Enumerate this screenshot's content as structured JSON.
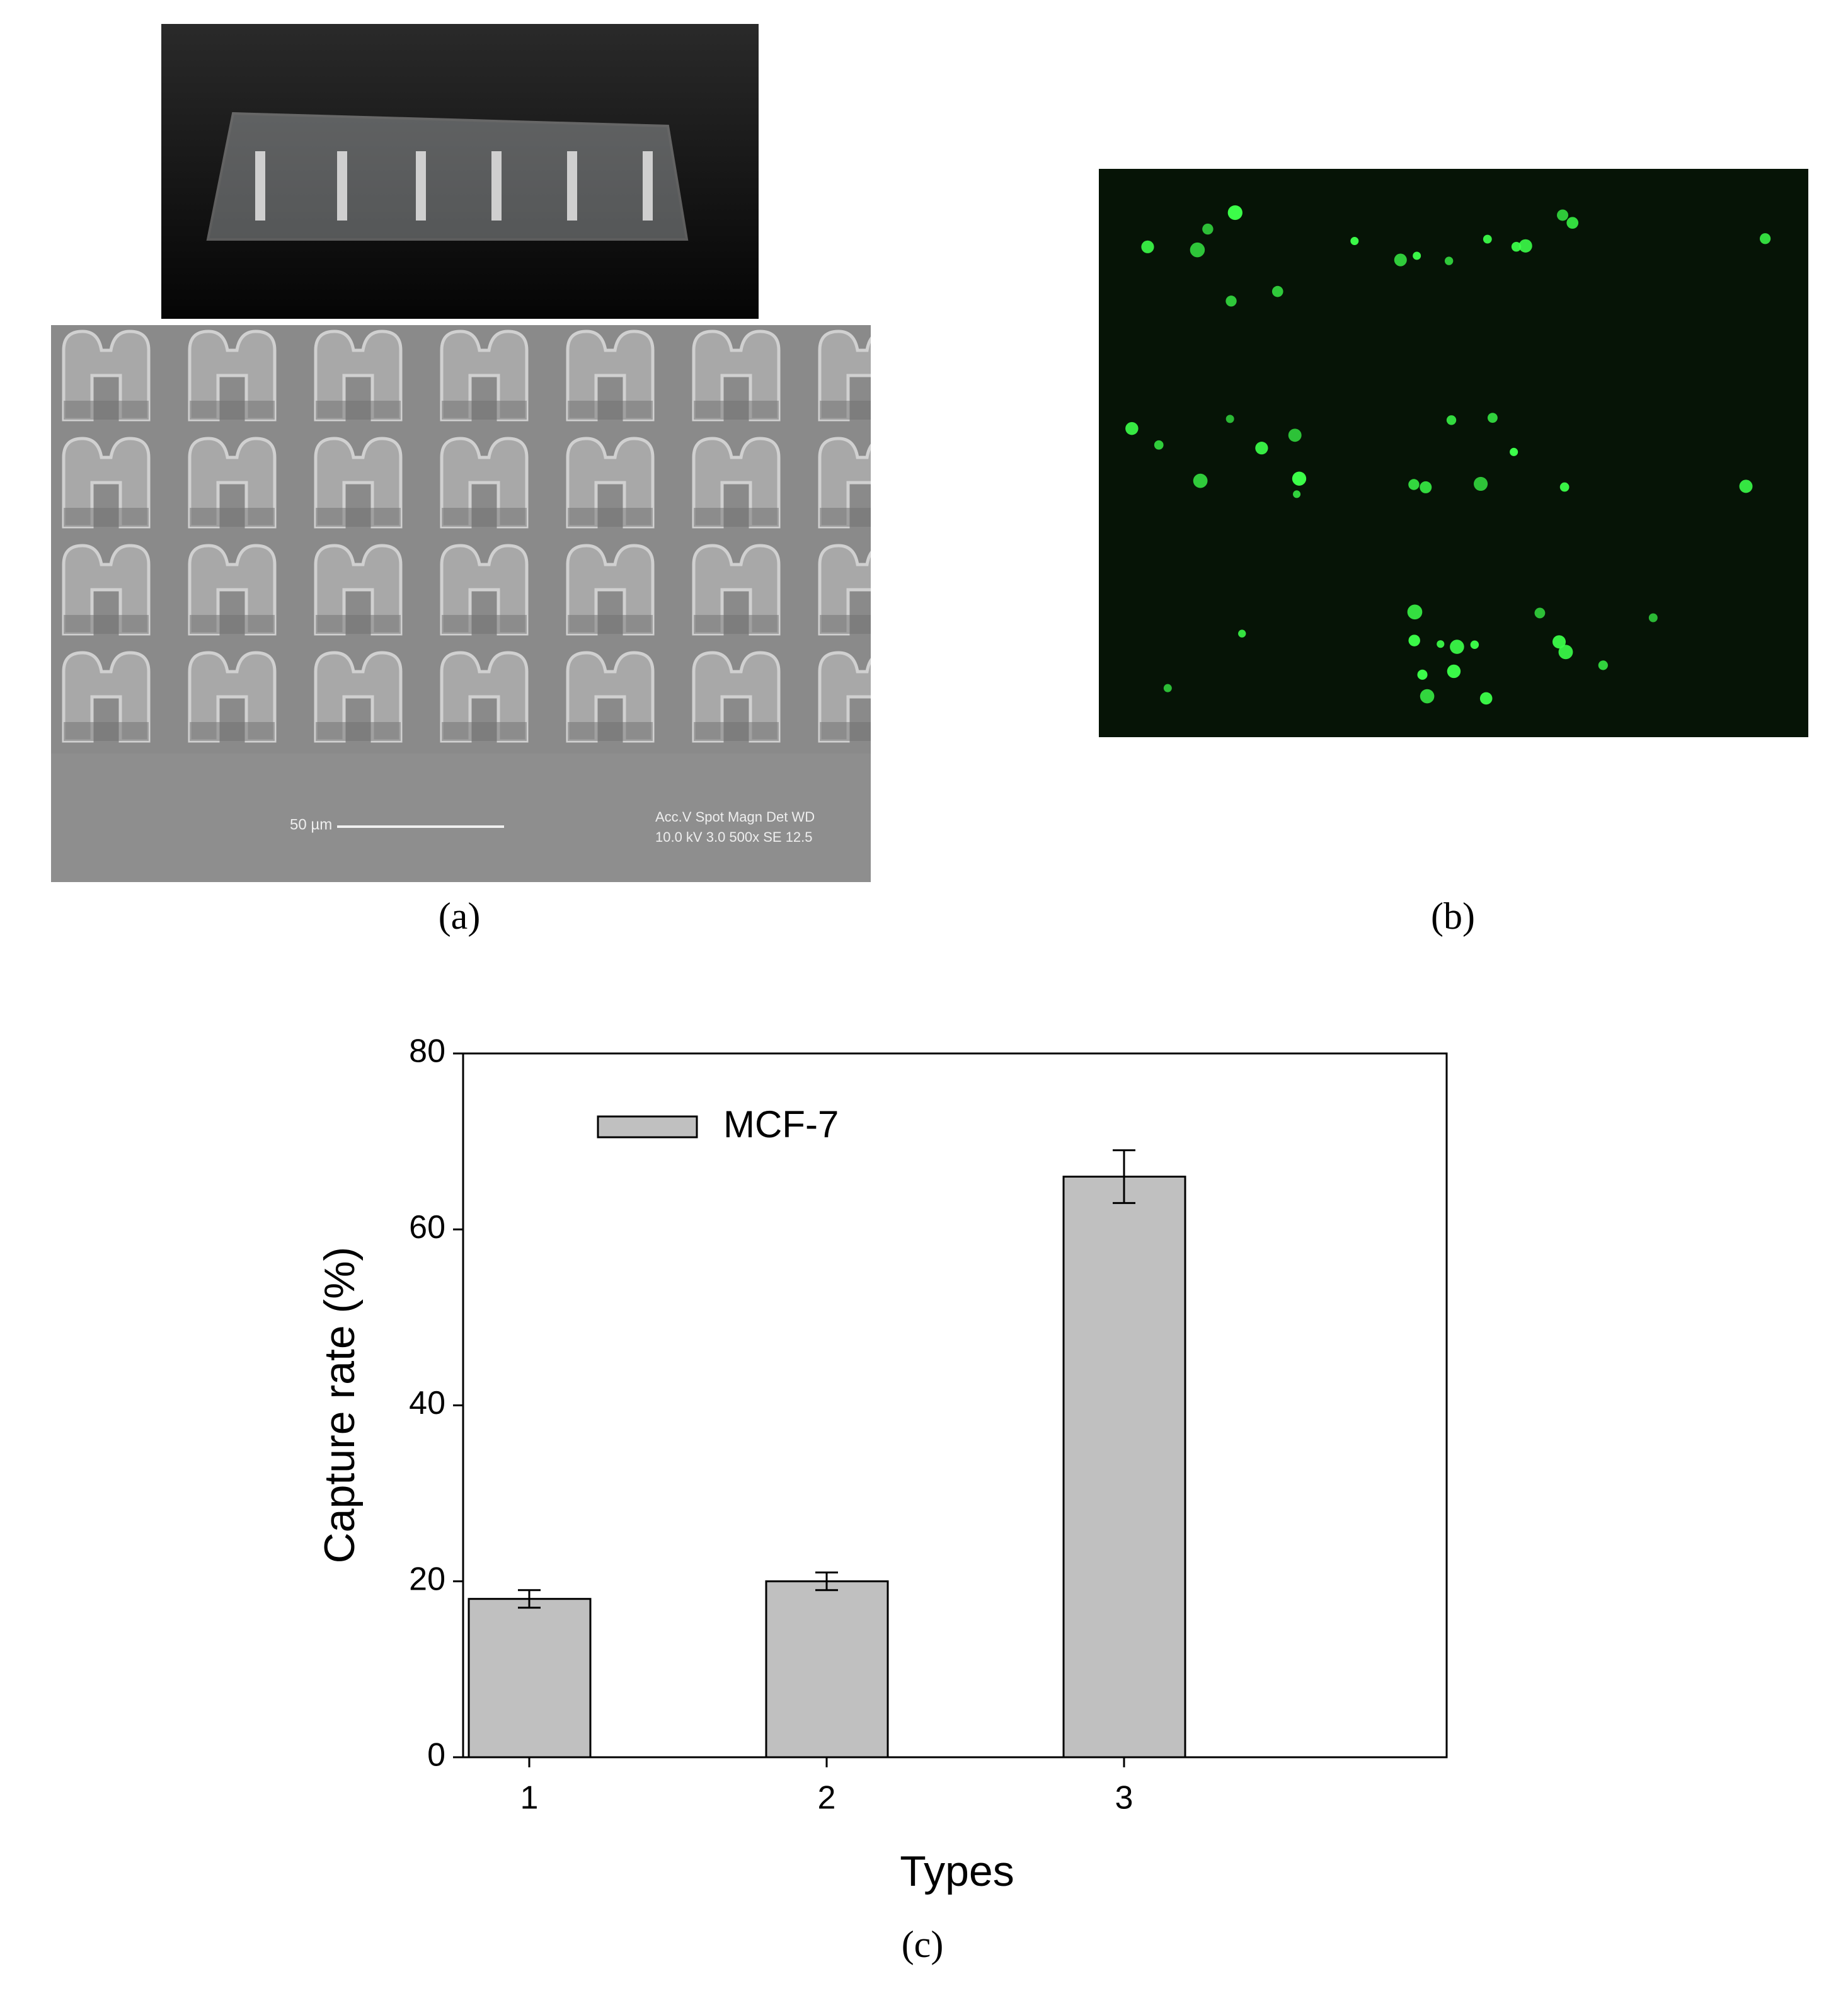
{
  "panels": {
    "a_label": "(a)",
    "b_label": "(b)",
    "c_label": "(c)",
    "sem_scale": "50 µm",
    "sem_header": "Acc.V  Spot Magn    Det  WD",
    "sem_values": "10.0 kV 3.0  500x     SE   12.5"
  },
  "chart_data": {
    "type": "bar",
    "xlabel": "Types",
    "ylabel": "Capture rate (%)",
    "categories": [
      "1",
      "2",
      "3"
    ],
    "series": [
      {
        "name": "MCF-7",
        "color": "#c0c0c0",
        "values": [
          18,
          20,
          66
        ],
        "errors": [
          1,
          1,
          3
        ]
      }
    ],
    "ylim": [
      0,
      80
    ],
    "yticks": [
      0,
      20,
      40,
      60,
      80
    ],
    "legend": "upper-left"
  }
}
